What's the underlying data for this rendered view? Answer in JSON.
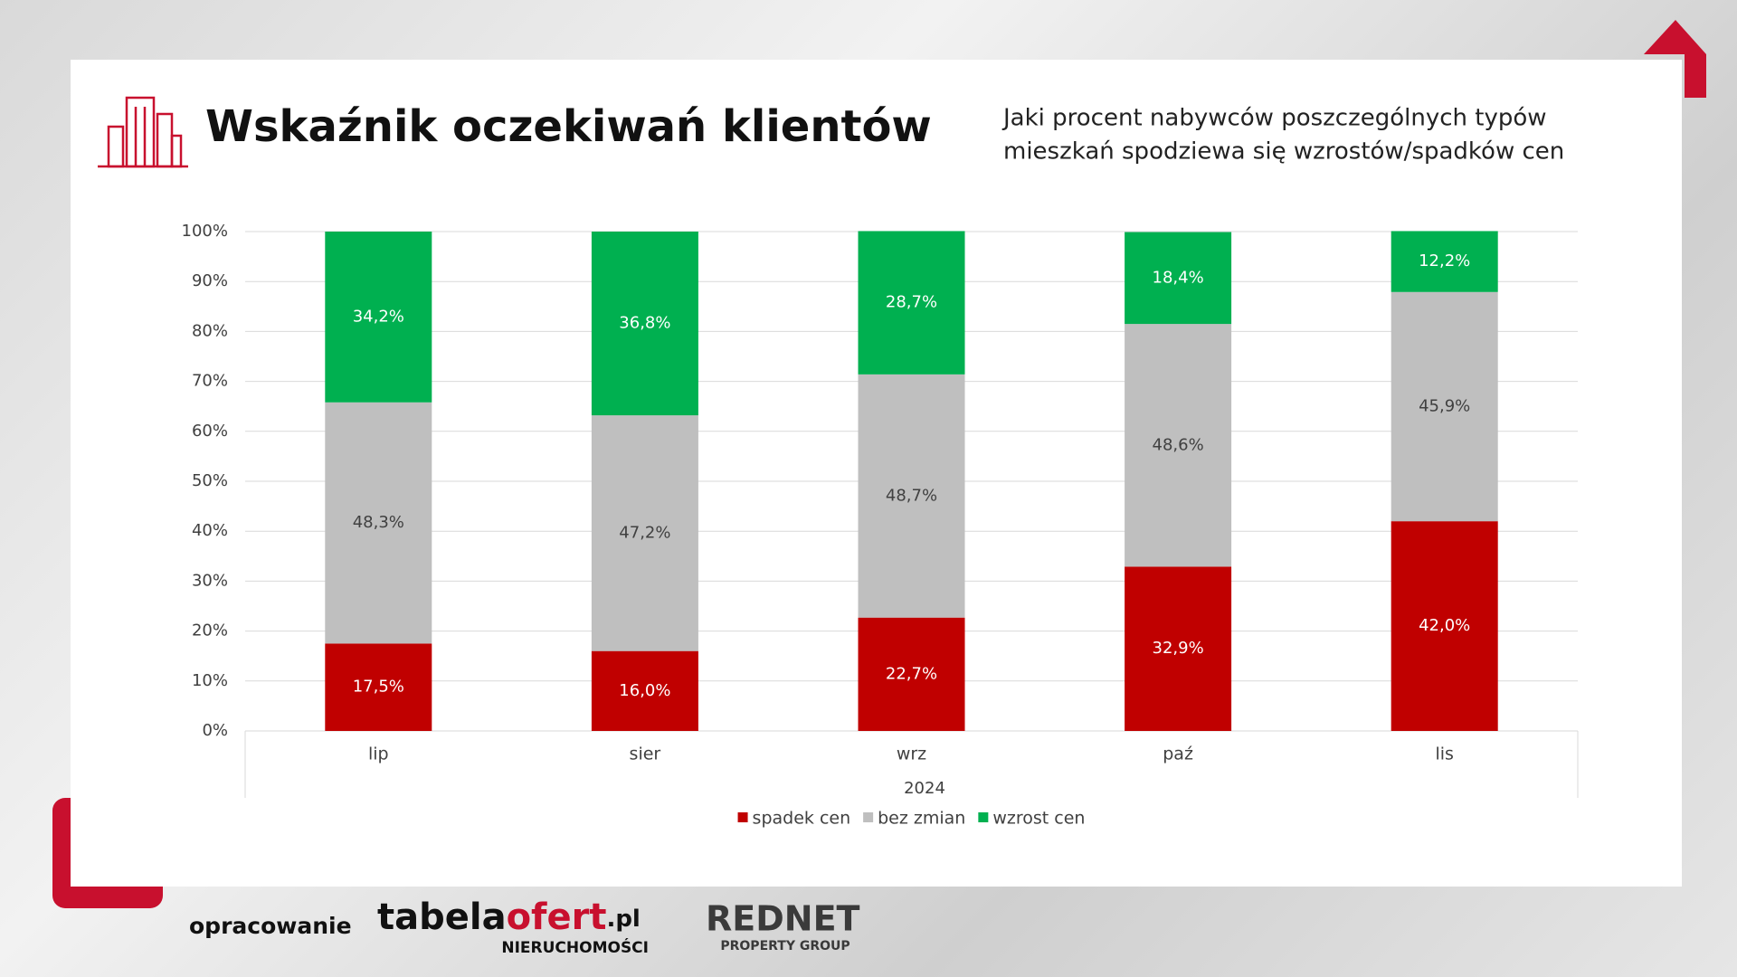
{
  "chart_data": {
    "type": "stacked_bar",
    "title": "Wskaźnik oczekiwań klientów",
    "subtitle": [
      "Jaki procent nabywców poszczególnych typów",
      "mieszkań spodziewa się wzrostów/spadków cen"
    ],
    "categories": [
      "lip",
      "sier",
      "wrz",
      "paź",
      "lis"
    ],
    "x_group_label": "2024",
    "series": [
      {
        "name": "spadek cen",
        "color": "#c00000",
        "values": [
          17.5,
          16.0,
          22.7,
          32.9,
          42.0
        ],
        "value_labels": [
          "17,5%",
          "16,0%",
          "22,7%",
          "32,9%",
          "42,0%"
        ]
      },
      {
        "name": "bez zmian",
        "color": "#bfbfbf",
        "values": [
          48.3,
          47.2,
          48.7,
          48.6,
          45.9
        ],
        "value_labels": [
          "48,3%",
          "47,2%",
          "48,7%",
          "48,6%",
          "45,9%"
        ]
      },
      {
        "name": "wzrost cen",
        "color": "#00b050",
        "values": [
          34.2,
          36.8,
          28.7,
          18.4,
          12.2
        ],
        "value_labels": [
          "34,2%",
          "36,8%",
          "28,7%",
          "18,4%",
          "12,2%"
        ]
      }
    ],
    "ylim": [
      0,
      100
    ],
    "yticks": [
      {
        "value": 0,
        "label": "0%"
      },
      {
        "value": 10,
        "label": "10%"
      },
      {
        "value": 20,
        "label": "20%"
      },
      {
        "value": 30,
        "label": "30%"
      },
      {
        "value": 40,
        "label": "40%"
      },
      {
        "value": 50,
        "label": "50%"
      },
      {
        "value": 60,
        "label": "60%"
      },
      {
        "value": 70,
        "label": "70%"
      },
      {
        "value": 80,
        "label": "80%"
      },
      {
        "value": 90,
        "label": "90%"
      },
      {
        "value": 100,
        "label": "100%"
      }
    ],
    "grid": true,
    "legend": "bottom"
  },
  "footer": {
    "credit": "opracowanie",
    "logo1": {
      "parts": [
        "tabela",
        "ofert",
        ".pl"
      ],
      "tagline": "NIERUCHOMOŚCI"
    },
    "logo2": {
      "name": "REDNET",
      "tagline": "PROPERTY GROUP"
    }
  }
}
